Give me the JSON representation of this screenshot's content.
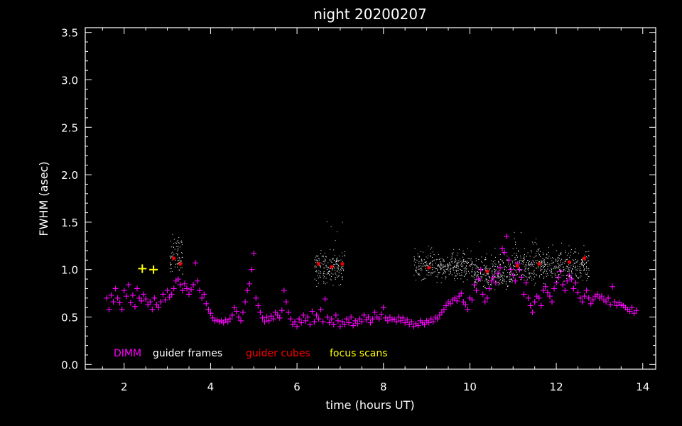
{
  "chart_data": {
    "type": "scatter",
    "title": "night 20200207",
    "xlabel": "time (hours UT)",
    "ylabel": "FWHM (asec)",
    "xlim": [
      1.1,
      14.3
    ],
    "ylim": [
      -0.05,
      3.55
    ],
    "xticks": [
      "2",
      "4",
      "6",
      "8",
      "10",
      "12",
      "14"
    ],
    "yticks": [
      "0.0",
      "0.5",
      "1.0",
      "1.5",
      "2.0",
      "2.5",
      "3.0",
      "3.5"
    ],
    "grid": false,
    "legend_position": "bottom-left",
    "series": [
      {
        "name": "DIMM",
        "color": "#ff00ff",
        "marker": "plus",
        "points": [
          [
            1.6,
            0.7
          ],
          [
            1.65,
            0.58
          ],
          [
            1.7,
            0.73
          ],
          [
            1.75,
            0.66
          ],
          [
            1.8,
            0.8
          ],
          [
            1.85,
            0.7
          ],
          [
            1.9,
            0.65
          ],
          [
            1.95,
            0.58
          ],
          [
            2.0,
            0.78
          ],
          [
            2.05,
            0.72
          ],
          [
            2.1,
            0.84
          ],
          [
            2.15,
            0.65
          ],
          [
            2.2,
            0.73
          ],
          [
            2.25,
            0.61
          ],
          [
            2.3,
            0.8
          ],
          [
            2.35,
            0.7
          ],
          [
            2.4,
            0.67
          ],
          [
            2.45,
            0.74
          ],
          [
            2.5,
            0.69
          ],
          [
            2.55,
            0.63
          ],
          [
            2.6,
            0.66
          ],
          [
            2.65,
            0.58
          ],
          [
            2.7,
            0.7
          ],
          [
            2.75,
            0.63
          ],
          [
            2.8,
            0.6
          ],
          [
            2.85,
            0.66
          ],
          [
            2.9,
            0.74
          ],
          [
            2.95,
            0.68
          ],
          [
            3.0,
            0.78
          ],
          [
            3.05,
            0.71
          ],
          [
            3.1,
            0.74
          ],
          [
            3.15,
            0.8
          ],
          [
            3.2,
            0.88
          ],
          [
            3.25,
            0.9
          ],
          [
            3.3,
            0.84
          ],
          [
            3.35,
            0.78
          ],
          [
            3.4,
            0.85
          ],
          [
            3.45,
            0.8
          ],
          [
            3.5,
            0.74
          ],
          [
            3.55,
            0.79
          ],
          [
            3.6,
            0.84
          ],
          [
            3.65,
            1.07
          ],
          [
            3.7,
            0.88
          ],
          [
            3.75,
            0.78
          ],
          [
            3.8,
            0.7
          ],
          [
            3.85,
            0.74
          ],
          [
            3.9,
            0.64
          ],
          [
            3.95,
            0.58
          ],
          [
            4.0,
            0.54
          ],
          [
            4.05,
            0.49
          ],
          [
            4.1,
            0.46
          ],
          [
            4.15,
            0.47
          ],
          [
            4.2,
            0.45
          ],
          [
            4.25,
            0.46
          ],
          [
            4.3,
            0.44
          ],
          [
            4.35,
            0.47
          ],
          [
            4.4,
            0.45
          ],
          [
            4.45,
            0.48
          ],
          [
            4.5,
            0.52
          ],
          [
            4.55,
            0.6
          ],
          [
            4.6,
            0.56
          ],
          [
            4.65,
            0.5
          ],
          [
            4.7,
            0.46
          ],
          [
            4.75,
            0.55
          ],
          [
            4.8,
            0.66
          ],
          [
            4.85,
            0.78
          ],
          [
            4.9,
            0.85
          ],
          [
            4.95,
            1.0
          ],
          [
            5.0,
            1.17
          ],
          [
            5.05,
            0.7
          ],
          [
            5.1,
            0.62
          ],
          [
            5.15,
            0.55
          ],
          [
            5.2,
            0.49
          ],
          [
            5.25,
            0.45
          ],
          [
            5.3,
            0.5
          ],
          [
            5.35,
            0.46
          ],
          [
            5.4,
            0.51
          ],
          [
            5.45,
            0.48
          ],
          [
            5.5,
            0.55
          ],
          [
            5.55,
            0.52
          ],
          [
            5.6,
            0.49
          ],
          [
            5.65,
            0.57
          ],
          [
            5.7,
            0.78
          ],
          [
            5.75,
            0.66
          ],
          [
            5.8,
            0.55
          ],
          [
            5.85,
            0.48
          ],
          [
            5.9,
            0.42
          ],
          [
            5.95,
            0.45
          ],
          [
            6.0,
            0.4
          ],
          [
            6.05,
            0.48
          ],
          [
            6.1,
            0.44
          ],
          [
            6.15,
            0.52
          ],
          [
            6.2,
            0.46
          ],
          [
            6.25,
            0.5
          ],
          [
            6.3,
            0.42
          ],
          [
            6.35,
            0.56
          ],
          [
            6.4,
            0.45
          ],
          [
            6.45,
            0.52
          ],
          [
            6.5,
            0.48
          ],
          [
            6.55,
            0.58
          ],
          [
            6.6,
            0.45
          ],
          [
            6.65,
            0.69
          ],
          [
            6.7,
            0.5
          ],
          [
            6.75,
            0.44
          ],
          [
            6.8,
            0.48
          ],
          [
            6.85,
            0.42
          ],
          [
            6.9,
            0.52
          ],
          [
            6.95,
            0.46
          ],
          [
            7.0,
            0.4
          ],
          [
            7.05,
            0.45
          ],
          [
            7.1,
            0.42
          ],
          [
            7.15,
            0.48
          ],
          [
            7.2,
            0.44
          ],
          [
            7.25,
            0.5
          ],
          [
            7.3,
            0.41
          ],
          [
            7.35,
            0.46
          ],
          [
            7.4,
            0.43
          ],
          [
            7.45,
            0.48
          ],
          [
            7.5,
            0.45
          ],
          [
            7.55,
            0.52
          ],
          [
            7.6,
            0.47
          ],
          [
            7.65,
            0.5
          ],
          [
            7.7,
            0.44
          ],
          [
            7.75,
            0.48
          ],
          [
            7.8,
            0.55
          ],
          [
            7.85,
            0.5
          ],
          [
            7.9,
            0.48
          ],
          [
            7.95,
            0.53
          ],
          [
            8.0,
            0.6
          ],
          [
            8.05,
            0.49
          ],
          [
            8.1,
            0.46
          ],
          [
            8.15,
            0.5
          ],
          [
            8.2,
            0.47
          ],
          [
            8.25,
            0.48
          ],
          [
            8.3,
            0.45
          ],
          [
            8.35,
            0.5
          ],
          [
            8.4,
            0.46
          ],
          [
            8.45,
            0.49
          ],
          [
            8.5,
            0.44
          ],
          [
            8.55,
            0.47
          ],
          [
            8.6,
            0.42
          ],
          [
            8.65,
            0.45
          ],
          [
            8.7,
            0.4
          ],
          [
            8.75,
            0.43
          ],
          [
            8.8,
            0.41
          ],
          [
            8.85,
            0.46
          ],
          [
            8.9,
            0.44
          ],
          [
            8.95,
            0.42
          ],
          [
            9.0,
            0.46
          ],
          [
            9.05,
            0.44
          ],
          [
            9.1,
            0.48
          ],
          [
            9.15,
            0.45
          ],
          [
            9.2,
            0.5
          ],
          [
            9.25,
            0.48
          ],
          [
            9.3,
            0.52
          ],
          [
            9.35,
            0.55
          ],
          [
            9.4,
            0.58
          ],
          [
            9.45,
            0.62
          ],
          [
            9.5,
            0.66
          ],
          [
            9.55,
            0.64
          ],
          [
            9.6,
            0.68
          ],
          [
            9.65,
            0.7
          ],
          [
            9.7,
            0.67
          ],
          [
            9.75,
            0.72
          ],
          [
            9.8,
            0.75
          ],
          [
            9.85,
            0.66
          ],
          [
            9.9,
            0.63
          ],
          [
            9.95,
            0.58
          ],
          [
            10.0,
            0.7
          ],
          [
            10.05,
            0.68
          ],
          [
            10.1,
            0.84
          ],
          [
            10.15,
            0.78
          ],
          [
            10.2,
            0.9
          ],
          [
            10.25,
            1.0
          ],
          [
            10.3,
            0.74
          ],
          [
            10.35,
            0.66
          ],
          [
            10.4,
            0.7
          ],
          [
            10.45,
            0.8
          ],
          [
            10.5,
            0.88
          ],
          [
            10.55,
            0.92
          ],
          [
            10.6,
            0.86
          ],
          [
            10.65,
            0.96
          ],
          [
            10.7,
            1.02
          ],
          [
            10.75,
            1.22
          ],
          [
            10.8,
            1.18
          ],
          [
            10.85,
            1.35
          ],
          [
            10.9,
            1.1
          ],
          [
            10.95,
            1.0
          ],
          [
            11.0,
            0.94
          ],
          [
            11.05,
            0.88
          ],
          [
            11.1,
            1.06
          ],
          [
            11.15,
            1.0
          ],
          [
            11.2,
            0.92
          ],
          [
            11.25,
            0.74
          ],
          [
            11.3,
            0.86
          ],
          [
            11.35,
            0.7
          ],
          [
            11.4,
            0.62
          ],
          [
            11.45,
            0.55
          ],
          [
            11.5,
            0.66
          ],
          [
            11.55,
            0.72
          ],
          [
            11.6,
            0.7
          ],
          [
            11.65,
            0.62
          ],
          [
            11.7,
            0.78
          ],
          [
            11.75,
            0.82
          ],
          [
            11.8,
            0.76
          ],
          [
            11.85,
            0.72
          ],
          [
            11.9,
            0.66
          ],
          [
            11.95,
            0.8
          ],
          [
            12.0,
            0.86
          ],
          [
            12.05,
            0.92
          ],
          [
            12.1,
            0.98
          ],
          [
            12.15,
            0.84
          ],
          [
            12.2,
            0.78
          ],
          [
            12.25,
            0.88
          ],
          [
            12.3,
            0.94
          ],
          [
            12.35,
            0.9
          ],
          [
            12.4,
            0.8
          ],
          [
            12.45,
            0.86
          ],
          [
            12.5,
            0.76
          ],
          [
            12.55,
            0.7
          ],
          [
            12.6,
            0.66
          ],
          [
            12.65,
            0.72
          ],
          [
            12.7,
            0.78
          ],
          [
            12.75,
            0.7
          ],
          [
            12.8,
            0.64
          ],
          [
            12.85,
            0.68
          ],
          [
            12.9,
            0.72
          ],
          [
            12.95,
            0.74
          ],
          [
            13.0,
            0.7
          ],
          [
            13.05,
            0.72
          ],
          [
            13.1,
            0.68
          ],
          [
            13.15,
            0.66
          ],
          [
            13.2,
            0.7
          ],
          [
            13.25,
            0.63
          ],
          [
            13.3,
            0.82
          ],
          [
            13.35,
            0.66
          ],
          [
            13.4,
            0.62
          ],
          [
            13.45,
            0.65
          ],
          [
            13.5,
            0.63
          ],
          [
            13.55,
            0.62
          ],
          [
            13.6,
            0.6
          ],
          [
            13.65,
            0.58
          ],
          [
            13.7,
            0.56
          ],
          [
            13.75,
            0.6
          ],
          [
            13.8,
            0.54
          ],
          [
            13.85,
            0.57
          ]
        ]
      },
      {
        "name": "guider frames",
        "color": "#ffffff",
        "marker": "dot",
        "clusters": [
          {
            "x": [
              3.05,
              3.35
            ],
            "y_center": 1.14,
            "y_spread": 0.09,
            "peak": 1.42
          },
          {
            "x": [
              6.4,
              7.1
            ],
            "y_center": 1.03,
            "y_spread": 0.08,
            "peak": 1.57
          },
          {
            "x": [
              8.7,
              10.05
            ],
            "y_center": 1.04,
            "y_spread": 0.07,
            "peak": 1.26
          },
          {
            "x": [
              10.05,
              11.0
            ],
            "y_center": 0.97,
            "y_spread": 0.08,
            "peak": 1.3
          },
          {
            "x": [
              11.0,
              12.0
            ],
            "y_center": 1.06,
            "y_spread": 0.09,
            "peak": 1.42
          },
          {
            "x": [
              12.0,
              12.75
            ],
            "y_center": 1.04,
            "y_spread": 0.08,
            "peak": 1.3
          }
        ]
      },
      {
        "name": "guider cubes",
        "color": "#ff0000",
        "marker": "star",
        "points": [
          [
            3.15,
            1.12
          ],
          [
            3.3,
            1.06
          ],
          [
            6.5,
            1.06
          ],
          [
            6.8,
            1.03
          ],
          [
            7.05,
            1.06
          ],
          [
            9.05,
            1.02
          ],
          [
            10.4,
            0.98
          ],
          [
            11.1,
            1.04
          ],
          [
            11.6,
            1.06
          ],
          [
            12.3,
            1.08
          ],
          [
            12.65,
            1.12
          ]
        ]
      },
      {
        "name": "focus scans",
        "color": "#ffff00",
        "marker": "plus",
        "points": [
          [
            2.42,
            1.01
          ],
          [
            2.68,
            1.0
          ]
        ]
      }
    ]
  }
}
